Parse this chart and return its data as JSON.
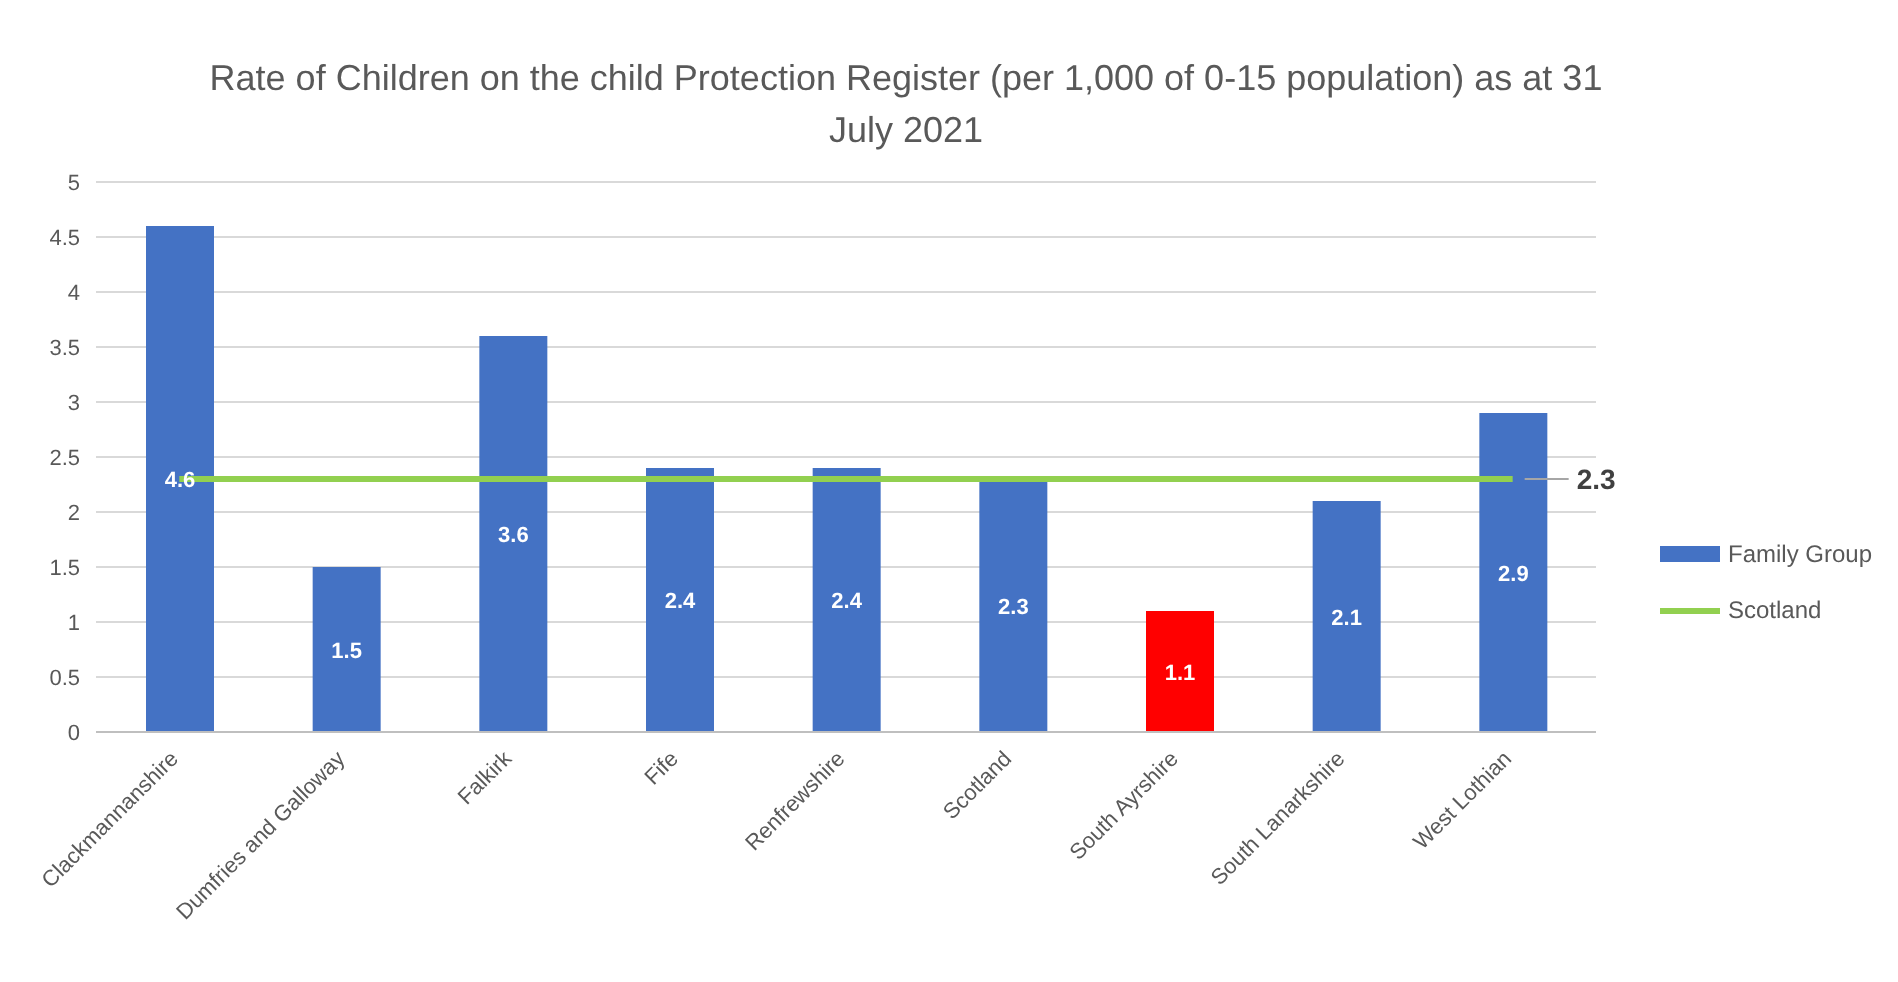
{
  "chart_data": {
    "type": "bar",
    "title": "Rate of Children on the child Protection Register (per 1,000 of 0-15 population) as at 31 July 2021",
    "categories": [
      "Clackmannanshire",
      "Dumfries and Galloway",
      "Falkirk",
      "Fife",
      "Renfrewshire",
      "Scotland",
      "South Ayrshire",
      "South Lanarkshire",
      "West Lothian"
    ],
    "series": [
      {
        "name": "Family Group",
        "color": "#4472c4",
        "colors": [
          "#4472c4",
          "#4472c4",
          "#4472c4",
          "#4472c4",
          "#4472c4",
          "#4472c4",
          "#ff0000",
          "#4472c4",
          "#4472c4"
        ],
        "values": [
          4.6,
          1.5,
          3.6,
          2.4,
          2.4,
          2.3,
          1.1,
          2.1,
          2.9
        ],
        "value_labels": [
          "4.6",
          "1.5",
          "3.6",
          "2.4",
          "2.4",
          "2.3",
          "1.1",
          "2.1",
          "2.9"
        ]
      },
      {
        "name": "Scotland",
        "type": "line",
        "color": "#92d050",
        "values": [
          2.3,
          2.3,
          2.3,
          2.3,
          2.3,
          2.3,
          2.3,
          2.3,
          2.3
        ],
        "value_labels": [
          null,
          null,
          null,
          null,
          null,
          null,
          null,
          null,
          "2.3"
        ]
      }
    ],
    "ylim": [
      0,
      5
    ],
    "yticks": [
      0,
      {
        "value": 0.5,
        "label": "0.5"
      },
      1,
      {
        "value": 1.5,
        "label": "1.5"
      },
      2,
      {
        "value": 2.5,
        "label": "2.5"
      },
      3,
      {
        "value": 3.5,
        "label": "3.5"
      },
      4,
      {
        "value": 4.5,
        "label": "4.5"
      },
      5
    ],
    "grid": "y",
    "legend": "right"
  }
}
